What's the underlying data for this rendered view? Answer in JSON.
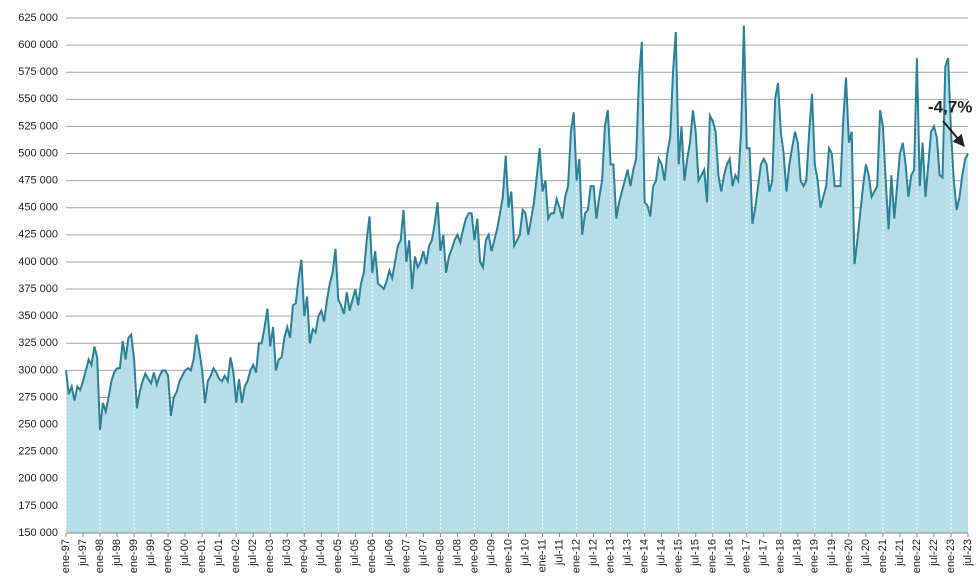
{
  "chart_data": {
    "type": "area",
    "annotation": "-4,7%",
    "color": "#2b8198",
    "fill": "#b6dde8",
    "ylim": [
      150000,
      625000
    ],
    "yticks": [
      {
        "value": 150000,
        "label": "150 000"
      },
      {
        "value": 175000,
        "label": "175 000"
      },
      {
        "value": 200000,
        "label": "200 000"
      },
      {
        "value": 225000,
        "label": "225 000"
      },
      {
        "value": 250000,
        "label": "250 000"
      },
      {
        "value": 275000,
        "label": "275 000"
      },
      {
        "value": 300000,
        "label": "300 000"
      },
      {
        "value": 325000,
        "label": "325 000"
      },
      {
        "value": 350000,
        "label": "350 000"
      },
      {
        "value": 375000,
        "label": "375 000"
      },
      {
        "value": 400000,
        "label": "400 000"
      },
      {
        "value": 425000,
        "label": "425 000"
      },
      {
        "value": 450000,
        "label": "450 000"
      },
      {
        "value": 475000,
        "label": "475 000"
      },
      {
        "value": 500000,
        "label": "500 000"
      },
      {
        "value": 525000,
        "label": "525 000"
      },
      {
        "value": 550000,
        "label": "550 000"
      },
      {
        "value": 575000,
        "label": "575 000"
      },
      {
        "value": 600000,
        "label": "600 000"
      },
      {
        "value": 625000,
        "label": "625 000"
      }
    ],
    "grid": true,
    "categories": [
      "ene-97",
      null,
      null,
      null,
      null,
      null,
      "jul-97",
      null,
      null,
      null,
      null,
      null,
      "ene-98",
      null,
      null,
      null,
      null,
      null,
      "jul-98",
      null,
      null,
      null,
      null,
      null,
      "ene-99",
      null,
      null,
      null,
      null,
      null,
      "jul-99",
      null,
      null,
      null,
      null,
      null,
      "ene-00",
      null,
      null,
      null,
      null,
      null,
      "jul-00",
      null,
      null,
      null,
      null,
      null,
      "ene-01",
      null,
      null,
      null,
      null,
      null,
      "jul-01",
      null,
      null,
      null,
      null,
      null,
      "ene-02",
      null,
      null,
      null,
      null,
      null,
      "jul-02",
      null,
      null,
      null,
      null,
      null,
      "ene-03",
      null,
      null,
      null,
      null,
      null,
      "jul-03",
      null,
      null,
      null,
      null,
      null,
      "ene-04",
      null,
      null,
      null,
      null,
      null,
      "jul-04",
      null,
      null,
      null,
      null,
      null,
      "ene-05",
      null,
      null,
      null,
      null,
      null,
      "jul-05",
      null,
      null,
      null,
      null,
      null,
      "ene-06",
      null,
      null,
      null,
      null,
      null,
      "jul-06",
      null,
      null,
      null,
      null,
      null,
      "ene-07",
      null,
      null,
      null,
      null,
      null,
      "jul-07",
      null,
      null,
      null,
      null,
      null,
      "ene-08",
      null,
      null,
      null,
      null,
      null,
      "jul-08",
      null,
      null,
      null,
      null,
      null,
      "ene-09",
      null,
      null,
      null,
      null,
      null,
      "jul-09",
      null,
      null,
      null,
      null,
      null,
      "ene-10",
      null,
      null,
      null,
      null,
      null,
      "jul-10",
      null,
      null,
      null,
      null,
      null,
      "ene-11",
      null,
      null,
      null,
      null,
      null,
      "jul-11",
      null,
      null,
      null,
      null,
      null,
      "ene-12",
      null,
      null,
      null,
      null,
      null,
      "jul-12",
      null,
      null,
      null,
      null,
      null,
      "ene-13",
      null,
      null,
      null,
      null,
      null,
      "jul-13",
      null,
      null,
      null,
      null,
      null,
      "ene-14",
      null,
      null,
      null,
      null,
      null,
      "jul-14",
      null,
      null,
      null,
      null,
      null,
      "ene-15",
      null,
      null,
      null,
      null,
      null,
      "jul-15",
      null,
      null,
      null,
      null,
      null,
      "ene-16",
      null,
      null,
      null,
      null,
      null,
      "jul-16",
      null,
      null,
      null,
      null,
      null,
      "ene-17",
      null,
      null,
      null,
      null,
      null,
      "jul-17",
      null,
      null,
      null,
      null,
      null,
      "ene-18",
      null,
      null,
      null,
      null,
      null,
      "jul-18",
      null,
      null,
      null,
      null,
      null,
      "ene-19",
      null,
      null,
      null,
      null,
      null,
      "jul-19",
      null,
      null,
      null,
      null,
      null,
      "ene-20",
      null,
      null,
      null,
      null,
      null,
      "jul-20",
      null,
      null,
      null,
      null,
      null,
      "ene-21",
      null,
      null,
      null,
      null,
      null,
      "jul-21",
      null,
      null,
      null,
      null,
      null,
      "ene-22",
      null,
      null,
      null,
      null,
      null,
      "jul-22",
      null,
      null,
      null,
      null,
      null,
      "ene-23",
      null,
      null,
      null,
      null,
      null,
      "jul-23"
    ],
    "values": [
      300000,
      278000,
      285000,
      272000,
      285000,
      282000,
      290000,
      300000,
      310000,
      305000,
      322000,
      312000,
      245000,
      270000,
      262000,
      275000,
      290000,
      298000,
      302000,
      302000,
      327000,
      310000,
      330000,
      333000,
      310000,
      265000,
      280000,
      290000,
      297000,
      292000,
      288000,
      298000,
      287000,
      295000,
      300000,
      300000,
      295000,
      258000,
      275000,
      280000,
      290000,
      295000,
      300000,
      302000,
      300000,
      310000,
      333000,
      318000,
      300000,
      270000,
      290000,
      295000,
      302000,
      298000,
      292000,
      290000,
      295000,
      290000,
      312000,
      298000,
      270000,
      292000,
      270000,
      285000,
      290000,
      300000,
      305000,
      298000,
      325000,
      325000,
      340000,
      357000,
      322000,
      340000,
      300000,
      310000,
      312000,
      330000,
      340000,
      330000,
      360000,
      362000,
      385000,
      402000,
      350000,
      368000,
      325000,
      338000,
      335000,
      350000,
      355000,
      345000,
      365000,
      380000,
      390000,
      412000,
      365000,
      360000,
      352000,
      372000,
      355000,
      365000,
      375000,
      360000,
      380000,
      390000,
      420000,
      442000,
      390000,
      410000,
      380000,
      378000,
      375000,
      382000,
      392000,
      385000,
      400000,
      415000,
      420000,
      448000,
      400000,
      420000,
      375000,
      405000,
      395000,
      400000,
      410000,
      398000,
      415000,
      420000,
      435000,
      455000,
      410000,
      425000,
      390000,
      405000,
      412000,
      420000,
      425000,
      418000,
      430000,
      440000,
      445000,
      445000,
      420000,
      440000,
      400000,
      395000,
      420000,
      425000,
      410000,
      420000,
      430000,
      445000,
      460000,
      498000,
      450000,
      465000,
      415000,
      420000,
      425000,
      448000,
      445000,
      425000,
      440000,
      455000,
      480000,
      505000,
      465000,
      475000,
      440000,
      445000,
      445000,
      458000,
      450000,
      440000,
      460000,
      470000,
      520000,
      538000,
      475000,
      495000,
      425000,
      445000,
      448000,
      470000,
      470000,
      440000,
      460000,
      475000,
      525000,
      540000,
      490000,
      490000,
      440000,
      455000,
      465000,
      475000,
      485000,
      470000,
      485000,
      495000,
      570000,
      603000,
      455000,
      452000,
      442000,
      470000,
      475000,
      495000,
      490000,
      475000,
      500000,
      515000,
      575000,
      612000,
      490000,
      525000,
      475000,
      495000,
      510000,
      540000,
      520000,
      475000,
      480000,
      485000,
      455000,
      535000,
      530000,
      520000,
      480000,
      465000,
      480000,
      490000,
      495000,
      470000,
      480000,
      475000,
      520000,
      618000,
      505000,
      505000,
      435000,
      450000,
      470000,
      490000,
      495000,
      490000,
      465000,
      475000,
      550000,
      565000,
      520000,
      500000,
      465000,
      490000,
      505000,
      520000,
      510000,
      475000,
      470000,
      475000,
      520000,
      555000,
      490000,
      475000,
      450000,
      460000,
      470000,
      505000,
      500000,
      470000,
      470000,
      470000,
      530000,
      570000,
      510000,
      520000,
      398000,
      420000,
      445000,
      470000,
      490000,
      480000,
      460000,
      465000,
      470000,
      540000,
      525000,
      475000,
      430000,
      480000,
      440000,
      470000,
      500000,
      510000,
      490000,
      460000,
      480000,
      485000,
      588000,
      470000,
      510000,
      460000,
      490000,
      520000,
      525000,
      515000,
      480000,
      478000,
      580000,
      588000,
      520000,
      475000,
      448000,
      460000,
      480000,
      495000,
      500000
    ]
  }
}
